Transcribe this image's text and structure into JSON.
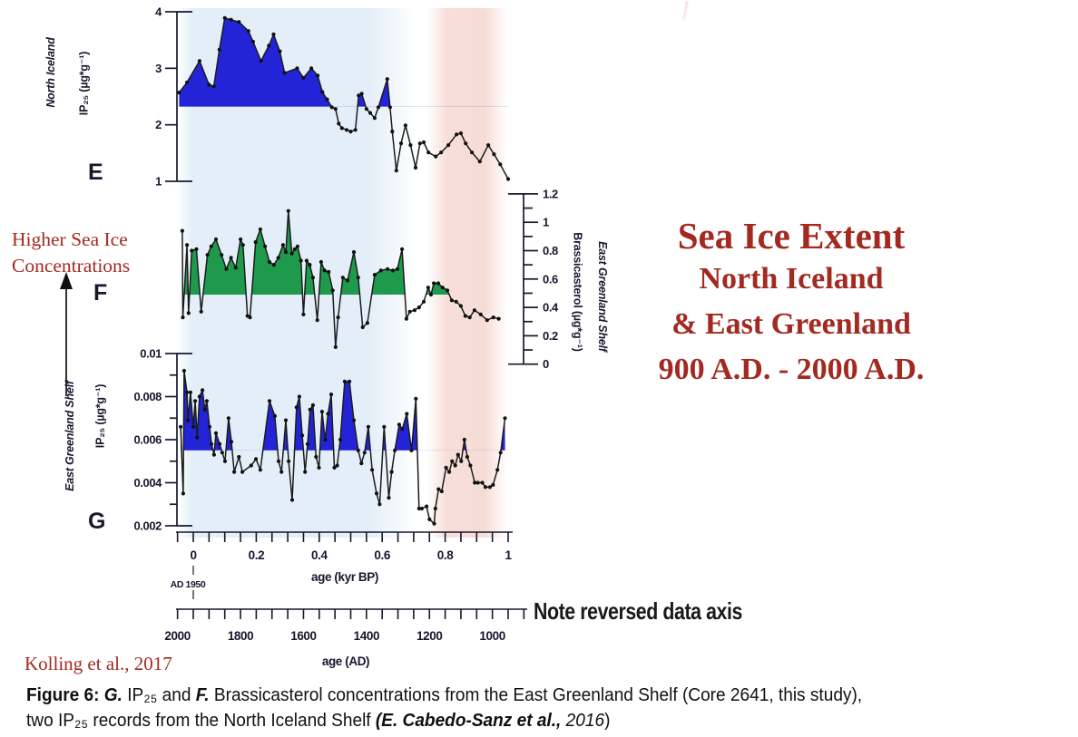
{
  "colors": {
    "accent": "#a32a21",
    "ink": "#17172e",
    "fill_blue": "#2323d8",
    "fill_green": "#1f9a4c",
    "band_blue": "#e3eef8",
    "band_pink": "#f6dcd6",
    "line": "#1c1c1c"
  },
  "title": {
    "line1": "Sea Ice Extent",
    "line2": "North Iceland",
    "line3": "& East Greenland",
    "line4": "900 A.D. - 2000 A.D."
  },
  "annotations": {
    "higher_sea_ice_line1": "Higher Sea Ice",
    "higher_sea_ice_line2": "Concentrations",
    "note_reversed": "Note reversed data axis",
    "ad_1950": "AD 1950",
    "citation": "Kolling et al., 2017"
  },
  "caption": {
    "prefix": "Figure 6: ",
    "g_label": "G. ",
    "mid1": "IP₂₅ and ",
    "f_label": "F. ",
    "mid2": "Brassicasterol concentrations from the East Greenland Shelf (Core 2641, this study),",
    "line2_start": "two IP₂₅  records from the North Iceland Shelf ",
    "cite_italic": "(E. Cabedo-Sanz et al.,",
    "cite_year": " 2016",
    "close_paren": ")"
  },
  "x_axis_kyr": {
    "label": "age (kyr BP)",
    "ticks": [
      "0",
      "0.2",
      "0.4",
      "0.6",
      "0.8",
      "1"
    ],
    "minor_step": 0.05,
    "range": [
      0,
      1
    ]
  },
  "x_axis_ad": {
    "label": "age (AD)",
    "ticks": [
      "2000",
      "1800",
      "1600",
      "1400",
      "1200",
      "1000"
    ],
    "minor_step_years": 50,
    "range": [
      2000,
      900
    ],
    "reversed": true
  },
  "chart_data": [
    {
      "id": "E",
      "panel_letter": "E",
      "type": "area",
      "region": "North Iceland",
      "ylabel_line1": "North Iceland",
      "ylabel_line2": "IP₂₅ (µg*g⁻¹)",
      "ylim": [
        1,
        4
      ],
      "yticks": [
        "1",
        "2",
        "3",
        "4"
      ],
      "baseline": 2.32,
      "fill_color": "#2323d8",
      "xlabel": "age (kyr BP)",
      "points": [
        [
          -0.045,
          2.57
        ],
        [
          -0.02,
          2.75
        ],
        [
          0.02,
          3.13
        ],
        [
          0.05,
          2.71
        ],
        [
          0.065,
          2.68
        ],
        [
          0.083,
          3.33
        ],
        [
          0.1,
          3.89
        ],
        [
          0.12,
          3.86
        ],
        [
          0.145,
          3.82
        ],
        [
          0.175,
          3.66
        ],
        [
          0.19,
          3.47
        ],
        [
          0.215,
          3.13
        ],
        [
          0.24,
          3.4
        ],
        [
          0.255,
          3.6
        ],
        [
          0.275,
          3.3
        ],
        [
          0.29,
          2.92
        ],
        [
          0.33,
          3.0
        ],
        [
          0.35,
          2.83
        ],
        [
          0.375,
          3.0
        ],
        [
          0.395,
          2.87
        ],
        [
          0.41,
          2.58
        ],
        [
          0.425,
          2.45
        ],
        [
          0.44,
          2.31
        ],
        [
          0.452,
          2.28
        ],
        [
          0.462,
          2.02
        ],
        [
          0.472,
          1.94
        ],
        [
          0.487,
          1.91
        ],
        [
          0.5,
          1.88
        ],
        [
          0.515,
          1.91
        ],
        [
          0.525,
          2.52
        ],
        [
          0.535,
          2.55
        ],
        [
          0.55,
          2.28
        ],
        [
          0.562,
          2.21
        ],
        [
          0.576,
          2.12
        ],
        [
          0.588,
          2.31
        ],
        [
          0.616,
          2.81
        ],
        [
          0.625,
          2.31
        ],
        [
          0.632,
          1.88
        ],
        [
          0.645,
          1.19
        ],
        [
          0.66,
          1.67
        ],
        [
          0.674,
          1.99
        ],
        [
          0.69,
          1.64
        ],
        [
          0.706,
          1.24
        ],
        [
          0.72,
          1.67
        ],
        [
          0.732,
          1.69
        ],
        [
          0.747,
          1.51
        ],
        [
          0.77,
          1.44
        ],
        [
          0.787,
          1.51
        ],
        [
          0.81,
          1.64
        ],
        [
          0.836,
          1.83
        ],
        [
          0.85,
          1.85
        ],
        [
          0.865,
          1.67
        ],
        [
          0.885,
          1.51
        ],
        [
          0.91,
          1.35
        ],
        [
          0.937,
          1.64
        ],
        [
          0.955,
          1.48
        ],
        [
          0.975,
          1.3
        ],
        [
          1.0,
          1.04
        ]
      ]
    },
    {
      "id": "F",
      "panel_letter": "F",
      "type": "area",
      "region": "East Greenland Shelf",
      "ylabel_line1": "East Greenland Shelf",
      "ylabel_line2": "Brassicasterol (µg*g⁻¹)",
      "ylim": [
        0,
        1.2
      ],
      "yticks": [
        "0",
        "0.2",
        "0.4",
        "0.6",
        "0.8",
        "1",
        "1.2"
      ],
      "baseline": 0.49,
      "fill_color": "#1f9a4c",
      "xlabel": "age (kyr BP)",
      "points": [
        [
          -0.035,
          0.94
        ],
        [
          -0.033,
          0.33
        ],
        [
          -0.02,
          0.84
        ],
        [
          -0.015,
          0.36
        ],
        [
          -0.005,
          0.8
        ],
        [
          0.01,
          0.81
        ],
        [
          0.025,
          0.37
        ],
        [
          0.045,
          0.77
        ],
        [
          0.057,
          0.83
        ],
        [
          0.072,
          0.88
        ],
        [
          0.09,
          0.77
        ],
        [
          0.105,
          0.67
        ],
        [
          0.12,
          0.75
        ],
        [
          0.135,
          0.68
        ],
        [
          0.15,
          0.88
        ],
        [
          0.158,
          0.84
        ],
        [
          0.172,
          0.34
        ],
        [
          0.18,
          0.33
        ],
        [
          0.198,
          0.86
        ],
        [
          0.213,
          0.95
        ],
        [
          0.228,
          0.83
        ],
        [
          0.242,
          0.72
        ],
        [
          0.256,
          0.7
        ],
        [
          0.27,
          0.75
        ],
        [
          0.285,
          0.84
        ],
        [
          0.294,
          0.79
        ],
        [
          0.302,
          1.08
        ],
        [
          0.313,
          0.78
        ],
        [
          0.322,
          0.81
        ],
        [
          0.331,
          0.83
        ],
        [
          0.342,
          0.73
        ],
        [
          0.35,
          0.35
        ],
        [
          0.36,
          0.73
        ],
        [
          0.37,
          0.7
        ],
        [
          0.38,
          0.61
        ],
        [
          0.394,
          0.31
        ],
        [
          0.406,
          0.72
        ],
        [
          0.417,
          0.66
        ],
        [
          0.43,
          0.65
        ],
        [
          0.443,
          0.52
        ],
        [
          0.452,
          0.12
        ],
        [
          0.46,
          0.33
        ],
        [
          0.475,
          0.61
        ],
        [
          0.49,
          0.59
        ],
        [
          0.51,
          0.79
        ],
        [
          0.524,
          0.61
        ],
        [
          0.538,
          0.26
        ],
        [
          0.553,
          0.29
        ],
        [
          0.576,
          0.63
        ],
        [
          0.596,
          0.66
        ],
        [
          0.617,
          0.67
        ],
        [
          0.634,
          0.66
        ],
        [
          0.648,
          0.67
        ],
        [
          0.663,
          0.81
        ],
        [
          0.677,
          0.32
        ],
        [
          0.688,
          0.37
        ],
        [
          0.703,
          0.38
        ],
        [
          0.717,
          0.4
        ],
        [
          0.732,
          0.44
        ],
        [
          0.746,
          0.54
        ],
        [
          0.755,
          0.49
        ],
        [
          0.764,
          0.57
        ],
        [
          0.778,
          0.57
        ],
        [
          0.792,
          0.54
        ],
        [
          0.807,
          0.52
        ],
        [
          0.821,
          0.45
        ],
        [
          0.835,
          0.44
        ],
        [
          0.85,
          0.41
        ],
        [
          0.864,
          0.34
        ],
        [
          0.878,
          0.33
        ],
        [
          0.893,
          0.38
        ],
        [
          0.913,
          0.35
        ],
        [
          0.933,
          0.31
        ],
        [
          0.953,
          0.33
        ],
        [
          0.97,
          0.32
        ]
      ]
    },
    {
      "id": "G",
      "panel_letter": "G",
      "type": "area",
      "region": "East Greenland Shelf",
      "ylabel_line1": "East Greenland Shelf",
      "ylabel_line2": "IP₂₅ (µg*g⁻¹)",
      "ylim": [
        0.002,
        0.01
      ],
      "yticks": [
        "0.002",
        "0.004",
        "0.006",
        "0.008",
        "0.01"
      ],
      "baseline": 0.0055,
      "fill_color": "#2323d8",
      "xlabel": "age (kyr BP)",
      "points": [
        [
          -0.04,
          0.0066
        ],
        [
          -0.032,
          0.0035
        ],
        [
          -0.029,
          0.0092
        ],
        [
          -0.02,
          0.0082
        ],
        [
          -0.017,
          0.0069
        ],
        [
          -0.009,
          0.0082
        ],
        [
          0,
          0.0066
        ],
        [
          0.006,
          0.0078
        ],
        [
          0.012,
          0.0061
        ],
        [
          0.02,
          0.008
        ],
        [
          0.029,
          0.0083
        ],
        [
          0.037,
          0.0074
        ],
        [
          0.043,
          0.0078
        ],
        [
          0.052,
          0.0066
        ],
        [
          0.058,
          0.0058
        ],
        [
          0.066,
          0.0053
        ],
        [
          0.072,
          0.0063
        ],
        [
          0.084,
          0.0058
        ],
        [
          0.092,
          0.0054
        ],
        [
          0.101,
          0.005
        ],
        [
          0.112,
          0.007
        ],
        [
          0.121,
          0.0059
        ],
        [
          0.13,
          0.0045
        ],
        [
          0.145,
          0.0052
        ],
        [
          0.156,
          0.0045
        ],
        [
          0.184,
          0.0048
        ],
        [
          0.199,
          0.0051
        ],
        [
          0.213,
          0.0046
        ],
        [
          0.242,
          0.0078
        ],
        [
          0.259,
          0.0071
        ],
        [
          0.271,
          0.005
        ],
        [
          0.28,
          0.0045
        ],
        [
          0.294,
          0.0069
        ],
        [
          0.303,
          0.005
        ],
        [
          0.314,
          0.0032
        ],
        [
          0.328,
          0.0075
        ],
        [
          0.337,
          0.008
        ],
        [
          0.346,
          0.0062
        ],
        [
          0.355,
          0.0045
        ],
        [
          0.363,
          0.0058
        ],
        [
          0.371,
          0.0074
        ],
        [
          0.38,
          0.0076
        ],
        [
          0.39,
          0.0052
        ],
        [
          0.399,
          0.0047
        ],
        [
          0.409,
          0.0073
        ],
        [
          0.419,
          0.006
        ],
        [
          0.428,
          0.0072
        ],
        [
          0.438,
          0.0081
        ],
        [
          0.448,
          0.0047
        ],
        [
          0.457,
          0.0048
        ],
        [
          0.467,
          0.006
        ],
        [
          0.481,
          0.0087
        ],
        [
          0.496,
          0.0087
        ],
        [
          0.51,
          0.0069
        ],
        [
          0.524,
          0.0055
        ],
        [
          0.534,
          0.0049
        ],
        [
          0.544,
          0.0054
        ],
        [
          0.556,
          0.0066
        ],
        [
          0.568,
          0.0046
        ],
        [
          0.582,
          0.0035
        ],
        [
          0.592,
          0.003
        ],
        [
          0.606,
          0.0066
        ],
        [
          0.621,
          0.0033
        ],
        [
          0.63,
          0.0045
        ],
        [
          0.64,
          0.0055
        ],
        [
          0.654,
          0.0067
        ],
        [
          0.664,
          0.0065
        ],
        [
          0.678,
          0.0072
        ],
        [
          0.693,
          0.0055
        ],
        [
          0.707,
          0.0079
        ],
        [
          0.717,
          0.0028
        ],
        [
          0.726,
          0.0028
        ],
        [
          0.741,
          0.0029
        ],
        [
          0.75,
          0.0023
        ],
        [
          0.765,
          0.0021
        ],
        [
          0.769,
          0.0028
        ],
        [
          0.779,
          0.0037
        ],
        [
          0.789,
          0.0036
        ],
        [
          0.803,
          0.0047
        ],
        [
          0.813,
          0.0045
        ],
        [
          0.822,
          0.005
        ],
        [
          0.832,
          0.0048
        ],
        [
          0.841,
          0.0053
        ],
        [
          0.851,
          0.005
        ],
        [
          0.861,
          0.006
        ],
        [
          0.87,
          0.0052
        ],
        [
          0.88,
          0.0048
        ],
        [
          0.894,
          0.004
        ],
        [
          0.904,
          0.004
        ],
        [
          0.918,
          0.004
        ],
        [
          0.928,
          0.0038
        ],
        [
          0.942,
          0.0038
        ],
        [
          0.952,
          0.0039
        ],
        [
          0.966,
          0.0046
        ],
        [
          0.976,
          0.0054
        ],
        [
          0.99,
          0.007
        ]
      ]
    }
  ]
}
